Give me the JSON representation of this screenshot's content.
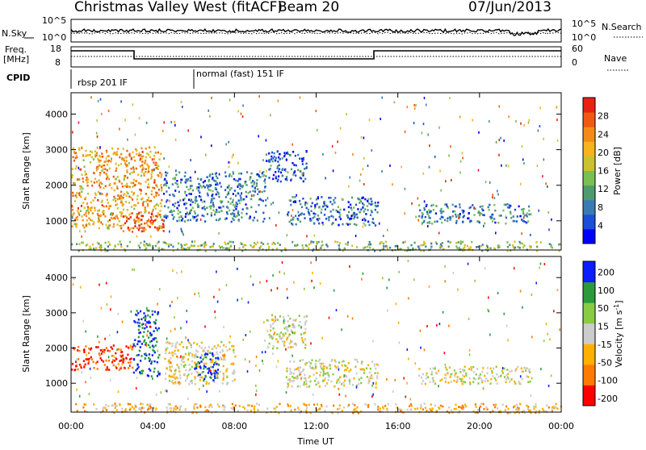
{
  "header": {
    "station": "Christmas Valley West (fitACF)",
    "beam": "Beam 20",
    "date": "07/Jun/2013"
  },
  "strip_labels": {
    "nsky": "N.Sky",
    "nsearch": "N.Search",
    "freq_line1": "Freq.",
    "freq_line2": "[MHz]",
    "nave": "Nave",
    "cpid": "CPID"
  },
  "strip_ticks": {
    "noise_left": [
      "10^5",
      "10^0"
    ],
    "noise_right": [
      "10^5",
      "10^0"
    ],
    "freq_left": [
      "18",
      "8"
    ],
    "nave_right": [
      "60",
      "0"
    ]
  },
  "cpid_segments": [
    {
      "label": "rbsp 201 IF",
      "start_hour": 0
    },
    {
      "label": "normal (fast) 151 IF",
      "start_hour": 6
    }
  ],
  "x_axis": {
    "label": "Time UT",
    "ticks": [
      "00:00",
      "04:00",
      "08:00",
      "12:00",
      "16:00",
      "20:00",
      "00:00"
    ],
    "range_hours": [
      0,
      24
    ]
  },
  "colors": {
    "power_scale": [
      "#0000ff",
      "#1a4fd6",
      "#3a7ab4",
      "#4f9b70",
      "#7abf52",
      "#c9c230",
      "#f6b31c",
      "#f58b16",
      "#ef5a12",
      "#e82210"
    ],
    "velocity_scale": [
      "#ff0000",
      "#ff7a00",
      "#ffb000",
      "#cccccc",
      "#88cc44",
      "#2a9a3a",
      "#0a1eff"
    ]
  },
  "chart_data": [
    {
      "type": "heatmap",
      "panel": "power",
      "ylabel": "Slant Range [km]",
      "xlabel": "",
      "ylim": [
        180,
        4600
      ],
      "yticks": [
        1000,
        2000,
        3000,
        4000
      ],
      "colorbar": {
        "label": "Power [dB]",
        "range": [
          0,
          32
        ],
        "ticks": [
          4,
          8,
          12,
          16,
          20,
          24,
          28
        ]
      },
      "regions": [
        {
          "t_start": 0.0,
          "t_end": 4.4,
          "r_low": 800,
          "r_high": 3100,
          "value": 22
        },
        {
          "t_start": 2.5,
          "t_end": 4.5,
          "r_low": 700,
          "r_high": 1300,
          "value": 28
        },
        {
          "t_start": 4.5,
          "t_end": 9.5,
          "r_low": 1000,
          "r_high": 2400,
          "value": 8
        },
        {
          "t_start": 9.5,
          "t_end": 11.5,
          "r_low": 2100,
          "r_high": 3000,
          "value": 6
        },
        {
          "t_start": 10.5,
          "t_end": 15.0,
          "r_low": 900,
          "r_high": 1700,
          "value": 8
        },
        {
          "t_start": 17.0,
          "t_end": 22.5,
          "r_low": 950,
          "r_high": 1500,
          "value": 9
        },
        {
          "t_start": 0.0,
          "t_end": 24.0,
          "r_low": 180,
          "r_high": 450,
          "value": 14
        }
      ]
    },
    {
      "type": "heatmap",
      "panel": "velocity",
      "ylabel": "Slant Range [km]",
      "xlabel": "Time UT",
      "ylim": [
        180,
        4600
      ],
      "yticks": [
        1000,
        2000,
        3000,
        4000
      ],
      "colorbar": {
        "label": "Velocity [m s^-1]",
        "range": [
          -250,
          250
        ],
        "ticks": [
          200,
          100,
          50,
          15,
          -15,
          -50,
          -100,
          -200
        ]
      },
      "regions": [
        {
          "t_start": 0.0,
          "t_end": 3.0,
          "r_low": 1400,
          "r_high": 2100,
          "value": -200
        },
        {
          "t_start": 3.0,
          "t_end": 4.3,
          "r_low": 1200,
          "r_high": 3100,
          "value": 200
        },
        {
          "t_start": 4.5,
          "t_end": 8.0,
          "r_low": 1000,
          "r_high": 2200,
          "value": -30
        },
        {
          "t_start": 6.0,
          "t_end": 7.2,
          "r_low": 1100,
          "r_high": 1900,
          "value": 200
        },
        {
          "t_start": 9.5,
          "t_end": 11.5,
          "r_low": 2000,
          "r_high": 3000,
          "value": 0
        },
        {
          "t_start": 10.5,
          "t_end": 15.0,
          "r_low": 900,
          "r_high": 1700,
          "value": 0
        },
        {
          "t_start": 17.0,
          "t_end": 22.5,
          "r_low": 1000,
          "r_high": 1500,
          "value": 0
        },
        {
          "t_start": 0.0,
          "t_end": 24.0,
          "r_low": 180,
          "r_high": 450,
          "value": -60
        }
      ]
    }
  ]
}
